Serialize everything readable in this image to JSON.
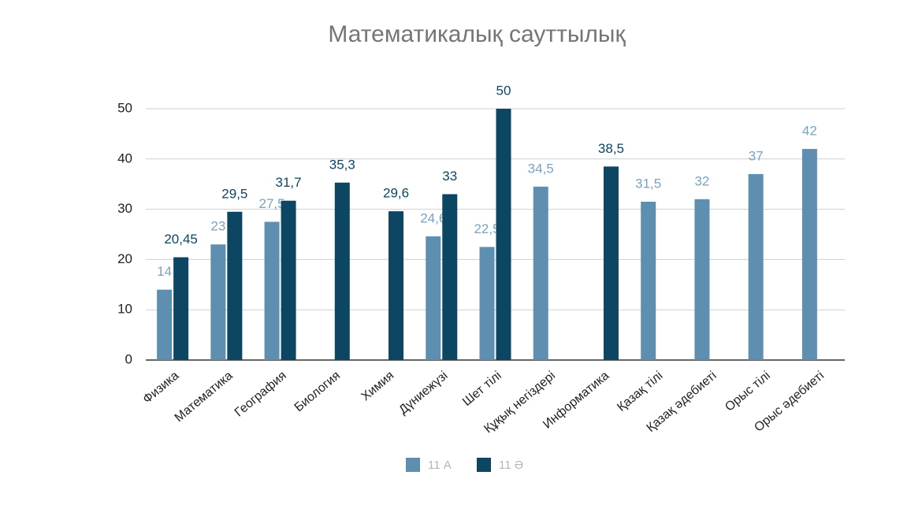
{
  "chart_data": {
    "type": "bar",
    "title": "Математикалық сауттылық",
    "categories": [
      "Физика",
      "Математика",
      "География",
      "Биология",
      "Химия",
      "Дүниежүзі",
      "Шет тілі",
      "Құқық негіздері",
      "Информатика",
      "Қазақ тілі",
      "Қазақ әдебиеті",
      "Орыс тілі",
      "Орыс әдебиеті"
    ],
    "series": [
      {
        "name": "11 А",
        "color": "#5e8fb0",
        "values": [
          14,
          23,
          27.5,
          null,
          null,
          24.6,
          22.5,
          34.5,
          null,
          31.5,
          32,
          37,
          42
        ],
        "value_labels": [
          "14",
          "23",
          "27,5",
          null,
          null,
          "24,6",
          "22,5",
          "34,5",
          null,
          "31,5",
          "32",
          "37",
          "42"
        ]
      },
      {
        "name": "11 Ә",
        "color": "#0c4663",
        "values": [
          20.45,
          29.5,
          31.7,
          35.3,
          29.6,
          33,
          50,
          null,
          38.5,
          null,
          null,
          null,
          null
        ],
        "value_labels": [
          "20,45",
          "29,5",
          "31,7",
          "35,3",
          "29,6",
          "33",
          "50",
          null,
          "38,5",
          null,
          null,
          null,
          null
        ]
      }
    ],
    "ylim": [
      0,
      50
    ],
    "yticks": [
      0,
      10,
      20,
      30,
      40,
      50
    ],
    "grid": true,
    "legend": "bottom"
  }
}
